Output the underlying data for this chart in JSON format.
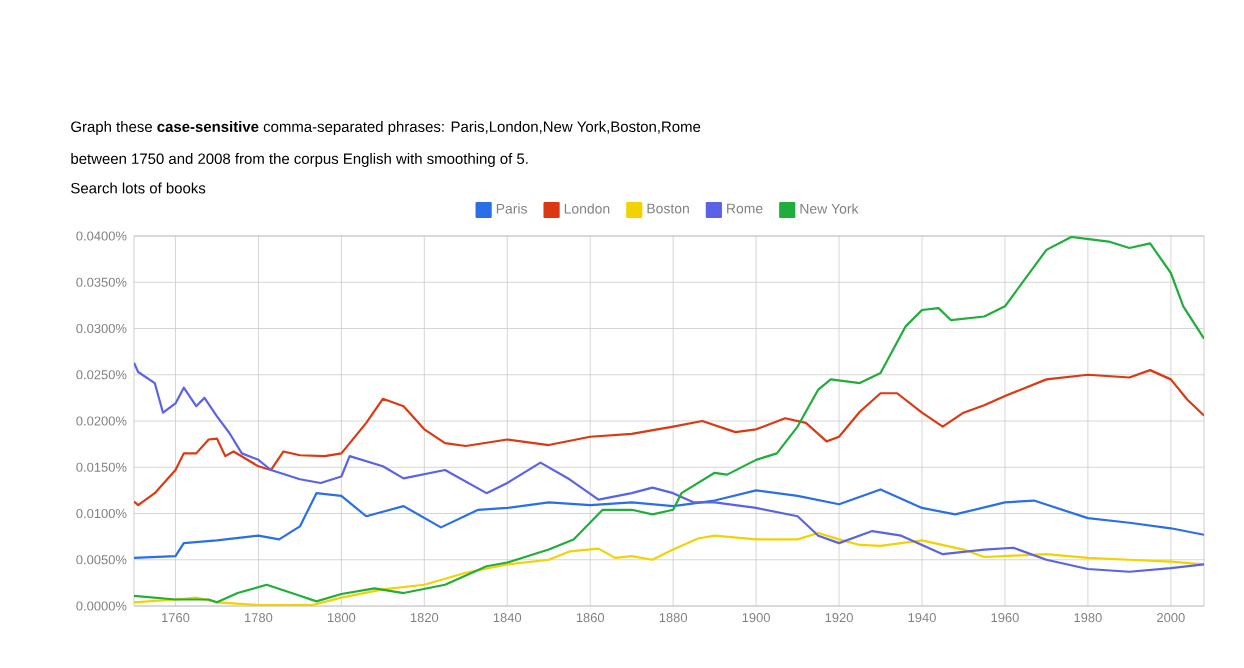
{
  "chart_data": {
    "type": "line",
    "annotations": [
      "Graph these **case-sensitive** comma-separated phrases: Paris,London,New York,Boston,Rome",
      "between 1750 and 2008 from the corpus English with smoothing of 5.",
      "Search lots of books"
    ],
    "xlim": [
      1750,
      2008
    ],
    "xticks": [
      1760,
      1780,
      1800,
      1820,
      1840,
      1860,
      1880,
      1900,
      1920,
      1940,
      1960,
      1980,
      2000
    ],
    "ylim": [
      0,
      0.04
    ],
    "yticks": [
      {
        "value": 0,
        "label": "0.0000%"
      },
      {
        "value": 0.005,
        "label": "0.0050%"
      },
      {
        "value": 0.01,
        "label": "0.0100%"
      },
      {
        "value": 0.015,
        "label": "0.0150%"
      },
      {
        "value": 0.02,
        "label": "0.0200%"
      },
      {
        "value": 0.025,
        "label": "0.0250%"
      },
      {
        "value": 0.03,
        "label": "0.0300%"
      },
      {
        "value": 0.035,
        "label": "0.0350%"
      },
      {
        "value": 0.04,
        "label": "0.0400%"
      }
    ],
    "grid": true,
    "legend": "top",
    "marker": "none",
    "line_style": "solid",
    "series": [
      {
        "name": "Paris",
        "color": "#2a6ee8",
        "x": [
          1750,
          1760,
          1762,
          1770,
          1780,
          1785,
          1790,
          1794,
          1800,
          1806,
          1815,
          1824,
          1833,
          1840,
          1850,
          1860,
          1870,
          1880,
          1890,
          1900,
          1910,
          1920,
          1930,
          1940,
          1948,
          1960,
          1967,
          1980,
          1990,
          2000,
          2008
        ],
        "values": [
          0.0052,
          0.0054,
          0.0068,
          0.0071,
          0.0076,
          0.0072,
          0.0086,
          0.0122,
          0.0119,
          0.0097,
          0.0108,
          0.0085,
          0.0104,
          0.0106,
          0.0112,
          0.0109,
          0.0112,
          0.0108,
          0.0114,
          0.0125,
          0.0119,
          0.011,
          0.0126,
          0.0106,
          0.0099,
          0.0112,
          0.0114,
          0.0095,
          0.009,
          0.0084,
          0.0077
        ]
      },
      {
        "name": "London",
        "color": "#dc3912",
        "x": [
          1750,
          1751,
          1755,
          1760,
          1762,
          1765,
          1768,
          1770,
          1772,
          1774,
          1780,
          1783,
          1786,
          1790,
          1796,
          1800,
          1806,
          1810,
          1815,
          1820,
          1825,
          1830,
          1840,
          1850,
          1860,
          1870,
          1880,
          1887,
          1895,
          1900,
          1907,
          1912,
          1917,
          1920,
          1925,
          1930,
          1934,
          1940,
          1945,
          1950,
          1955,
          1960,
          1970,
          1980,
          1990,
          1995,
          2000,
          2004,
          2008
        ],
        "values": [
          0.0113,
          0.0109,
          0.0122,
          0.0147,
          0.0165,
          0.0165,
          0.018,
          0.0181,
          0.0162,
          0.0167,
          0.0151,
          0.0147,
          0.0167,
          0.0163,
          0.0162,
          0.0165,
          0.0198,
          0.0224,
          0.0216,
          0.0191,
          0.0176,
          0.0173,
          0.018,
          0.0174,
          0.0183,
          0.0186,
          0.0194,
          0.02,
          0.0188,
          0.0191,
          0.0203,
          0.0198,
          0.0178,
          0.0183,
          0.021,
          0.023,
          0.023,
          0.0209,
          0.0194,
          0.0209,
          0.0217,
          0.0227,
          0.0245,
          0.025,
          0.0247,
          0.0255,
          0.0245,
          0.0223,
          0.0206
        ]
      },
      {
        "name": "Boston",
        "color": "#f2d200",
        "x": [
          1750,
          1760,
          1765,
          1770,
          1780,
          1793,
          1800,
          1810,
          1820,
          1830,
          1840,
          1850,
          1855,
          1862,
          1866,
          1870,
          1875,
          1880,
          1886,
          1890,
          1900,
          1910,
          1915,
          1920,
          1925,
          1930,
          1940,
          1950,
          1955,
          1960,
          1970,
          1980,
          1990,
          2000,
          2008
        ],
        "values": [
          0.0004,
          0.0007,
          0.0009,
          0.0004,
          0.0001,
          0.0001,
          0.0009,
          0.0018,
          0.0023,
          0.0036,
          0.0045,
          0.005,
          0.0059,
          0.0062,
          0.0052,
          0.0054,
          0.005,
          0.0061,
          0.0073,
          0.0076,
          0.0072,
          0.0072,
          0.0079,
          0.0072,
          0.0066,
          0.0065,
          0.0071,
          0.0061,
          0.0053,
          0.0054,
          0.0056,
          0.0052,
          0.005,
          0.0048,
          0.0045
        ]
      },
      {
        "name": "Rome",
        "color": "#5a63e6",
        "x": [
          1750,
          1751,
          1755,
          1757,
          1760,
          1762,
          1765,
          1767,
          1770,
          1773,
          1776,
          1780,
          1783,
          1790,
          1795,
          1800,
          1802,
          1810,
          1815,
          1825,
          1835,
          1840,
          1848,
          1855,
          1862,
          1870,
          1875,
          1880,
          1885,
          1890,
          1900,
          1910,
          1915,
          1920,
          1928,
          1935,
          1945,
          1955,
          1962,
          1970,
          1980,
          1990,
          2000,
          2008
        ],
        "values": [
          0.0263,
          0.0253,
          0.0241,
          0.0209,
          0.0219,
          0.0236,
          0.0216,
          0.0225,
          0.0205,
          0.0187,
          0.0165,
          0.0158,
          0.0147,
          0.0137,
          0.0133,
          0.014,
          0.0162,
          0.0151,
          0.0138,
          0.0147,
          0.0122,
          0.0133,
          0.0155,
          0.0137,
          0.0115,
          0.0122,
          0.0128,
          0.0122,
          0.0112,
          0.0112,
          0.0106,
          0.0097,
          0.0076,
          0.0068,
          0.0081,
          0.0076,
          0.0056,
          0.0061,
          0.0063,
          0.005,
          0.004,
          0.0037,
          0.0041,
          0.0045
        ]
      },
      {
        "name": "New York",
        "color": "#1fae3a",
        "x": [
          1750,
          1760,
          1768,
          1770,
          1775,
          1782,
          1790,
          1794,
          1800,
          1808,
          1815,
          1825,
          1835,
          1840,
          1850,
          1856,
          1863,
          1870,
          1875,
          1880,
          1882,
          1890,
          1893,
          1900,
          1905,
          1910,
          1915,
          1918,
          1925,
          1930,
          1936,
          1940,
          1944,
          1947,
          1955,
          1960,
          1970,
          1976,
          1985,
          1990,
          1995,
          2000,
          2003,
          2008
        ],
        "values": [
          0.0011,
          0.0007,
          0.0007,
          0.0004,
          0.0014,
          0.0023,
          0.0011,
          0.0005,
          0.0013,
          0.0019,
          0.0014,
          0.0023,
          0.0043,
          0.0047,
          0.0061,
          0.0072,
          0.0104,
          0.0104,
          0.0099,
          0.0104,
          0.0122,
          0.0144,
          0.0142,
          0.0158,
          0.0165,
          0.0194,
          0.0234,
          0.0245,
          0.0241,
          0.0252,
          0.0302,
          0.032,
          0.0322,
          0.0309,
          0.0313,
          0.0324,
          0.0385,
          0.0399,
          0.0394,
          0.0387,
          0.0392,
          0.036,
          0.0324,
          0.0289
        ]
      }
    ]
  }
}
